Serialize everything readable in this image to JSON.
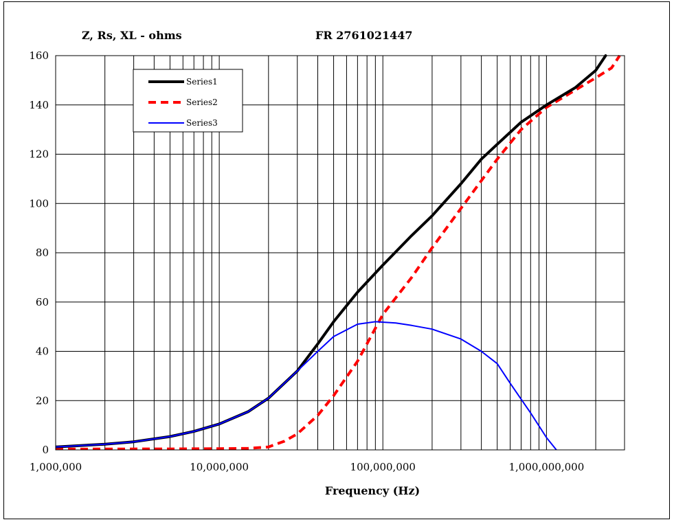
{
  "chart_data": {
    "type": "line",
    "title": "FR 2761021447",
    "ylabel": "Z, Rs, XL - ohms",
    "xlabel": "Frequency (Hz)",
    "x_scale": "log",
    "xlim": [
      1000000,
      3000000000
    ],
    "ylim": [
      0,
      160
    ],
    "x_ticks": [
      1000000,
      10000000,
      100000000,
      1000000000
    ],
    "x_tick_labels": [
      "1,000,000",
      "10,000,000",
      "100,000,000",
      "1,000,000,000"
    ],
    "y_ticks": [
      0,
      20,
      40,
      60,
      80,
      100,
      120,
      140,
      160
    ],
    "y_tick_labels": [
      "0",
      "20",
      "40",
      "60",
      "80",
      "100",
      "120",
      "140",
      "160"
    ],
    "grid": true,
    "legend_position": "top-left",
    "series": [
      {
        "name": "Series1",
        "color": "#000000",
        "style": "solid-thick",
        "x": [
          1000000,
          2000000,
          3000000,
          5000000,
          7000000,
          10000000,
          15000000,
          20000000,
          30000000,
          40000000,
          50000000,
          70000000,
          100000000,
          150000000,
          200000000,
          300000000,
          400000000,
          500000000,
          700000000,
          1000000000,
          1500000000,
          2000000000,
          2300000000
        ],
        "y": [
          1.2,
          2.3,
          3.3,
          5.4,
          7.5,
          10.5,
          15.5,
          21,
          32,
          43,
          52,
          64,
          75,
          87,
          95,
          108,
          118,
          124,
          133,
          140,
          147,
          154,
          160
        ]
      },
      {
        "name": "Series2",
        "color": "#ff0000",
        "style": "dashed-thick",
        "x": [
          1000000,
          5000000,
          10000000,
          15000000,
          20000000,
          25000000,
          30000000,
          40000000,
          50000000,
          70000000,
          100000000,
          150000000,
          200000000,
          300000000,
          500000000,
          700000000,
          1000000000,
          1500000000,
          2000000000,
          2500000000,
          2800000000
        ],
        "y": [
          0.3,
          0.4,
          0.5,
          0.6,
          1.2,
          3.5,
          6.5,
          14,
          22,
          36,
          55,
          70,
          82,
          98,
          118,
          130,
          139,
          146,
          151,
          155,
          160
        ]
      },
      {
        "name": "Series3",
        "color": "#0000ff",
        "style": "solid-thin",
        "x": [
          1000000,
          2000000,
          3000000,
          5000000,
          7000000,
          10000000,
          15000000,
          20000000,
          30000000,
          40000000,
          50000000,
          70000000,
          90000000,
          120000000,
          150000000,
          200000000,
          300000000,
          400000000,
          500000000,
          600000000,
          800000000,
          1000000000,
          1150000000
        ],
        "y": [
          1.2,
          2.3,
          3.3,
          5.4,
          7.5,
          10.5,
          15.5,
          21,
          32,
          40,
          46,
          51,
          52,
          51.5,
          50.5,
          49,
          45,
          40,
          35,
          27,
          15,
          5,
          0
        ]
      }
    ]
  }
}
